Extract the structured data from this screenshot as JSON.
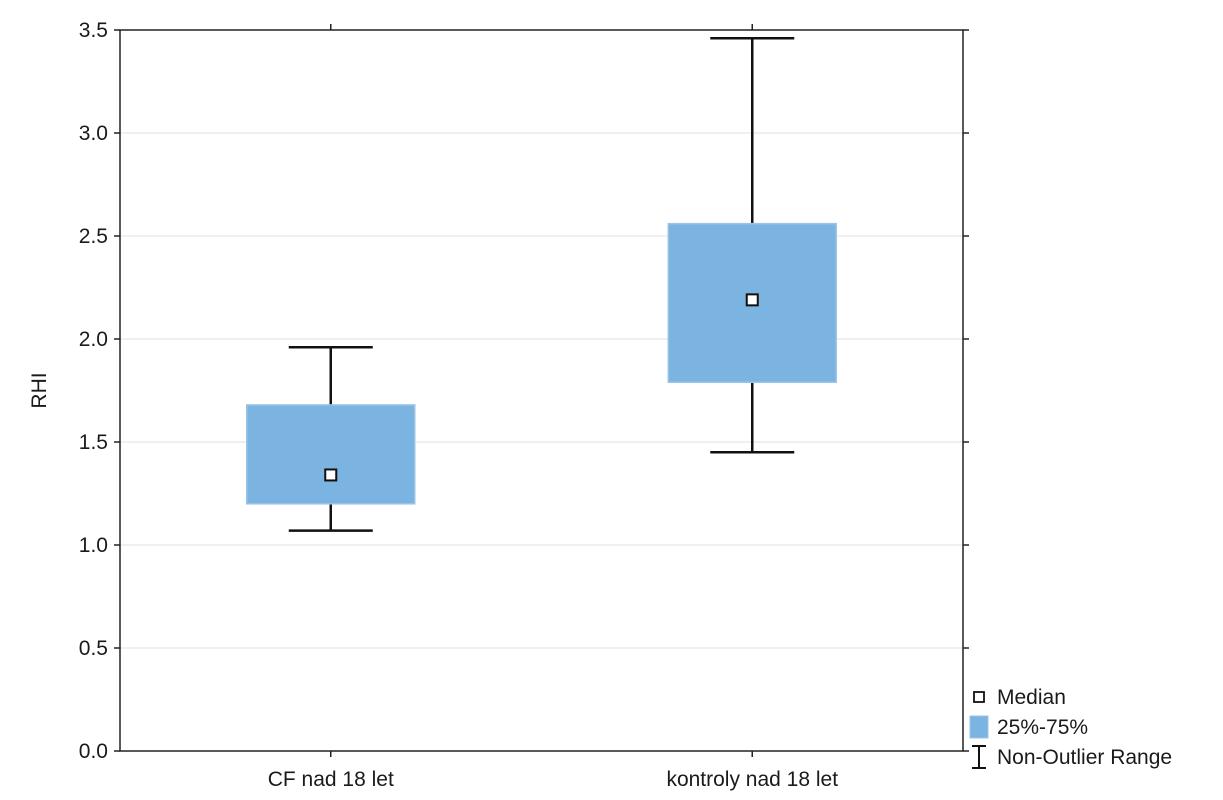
{
  "chart_data": {
    "type": "box",
    "ylabel": "RHI",
    "xlabel": "",
    "ylim": [
      0,
      3.5
    ],
    "yticks": [
      "0.0",
      "0.5",
      "1.0",
      "1.5",
      "2.0",
      "2.5",
      "3.0",
      "3.5"
    ],
    "categories": [
      "CF nad 18 let",
      "kontroly nad 18 let"
    ],
    "boxes": [
      {
        "category": "CF nad 18 let",
        "min": 1.07,
        "q1": 1.2,
        "median": 1.34,
        "q3": 1.68,
        "max": 1.96
      },
      {
        "category": "kontroly nad 18 let",
        "min": 1.45,
        "q1": 1.79,
        "median": 2.19,
        "q3": 2.56,
        "max": 3.46
      }
    ],
    "legend": {
      "placement": "bottom-right",
      "items": [
        {
          "label": "Median",
          "symbol": "square-marker"
        },
        {
          "label": "25%-75%",
          "symbol": "filled-box"
        },
        {
          "label": "Non-Outlier Range",
          "symbol": "whisker"
        }
      ]
    },
    "grid": true,
    "colors": {
      "box_fill": "#7bb3e1",
      "box_edge": "#9cc4e6",
      "grid": "#e2e2e2",
      "axis": "#222222"
    }
  }
}
